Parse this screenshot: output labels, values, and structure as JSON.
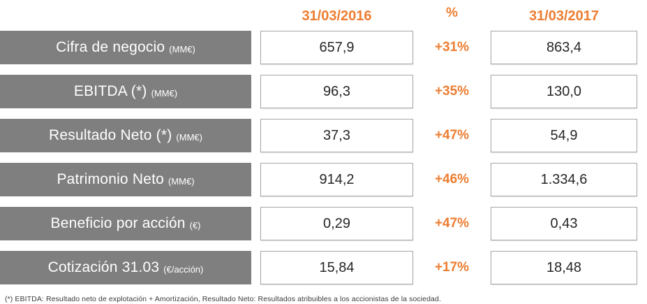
{
  "table": {
    "headers": {
      "col_2016": "31/03/2016",
      "col_pct": "%",
      "col_2017": "31/03/2017"
    },
    "rows": [
      {
        "label": "Cifra de negocio",
        "unit": "(MM€)",
        "v2016": "657,9",
        "pct": "+31%",
        "v2017": "863,4"
      },
      {
        "label": "EBITDA (*)",
        "unit": "(MM€)",
        "v2016": "96,3",
        "pct": "+35%",
        "v2017": "130,0"
      },
      {
        "label": "Resultado Neto (*)",
        "unit": "(MM€)",
        "v2016": "37,3",
        "pct": "+47%",
        "v2017": "54,9"
      },
      {
        "label": "Patrimonio Neto",
        "unit": "(MM€)",
        "v2016": "914,2",
        "pct": "+46%",
        "v2017": "1.334,6"
      },
      {
        "label": "Beneficio por acción",
        "unit": "(€)",
        "v2016": "0,29",
        "pct": "+47%",
        "v2017": "0,43"
      },
      {
        "label": "Cotización 31.03",
        "unit": "(€/acción)",
        "v2016": "15,84",
        "pct": "+17%",
        "v2017": "18,48"
      }
    ],
    "footnote": "(*) EBITDA: Resultado neto de explotación + Amortización, Resultado Neto: Resultados atribuibles a los accionistas de la sociedad."
  },
  "colors": {
    "accent_orange": "#ED7D31",
    "bar_gray": "#7F7F7F",
    "box_border": "#A6A6A6"
  },
  "chart_data": {
    "type": "table",
    "title": "",
    "categories": [
      "Cifra de negocio (MM€)",
      "EBITDA (MM€)",
      "Resultado Neto (MM€)",
      "Patrimonio Neto (MM€)",
      "Beneficio por acción (€)",
      "Cotización 31.03 (€/acción)"
    ],
    "series": [
      {
        "name": "31/03/2016",
        "values": [
          657.9,
          96.3,
          37.3,
          914.2,
          0.29,
          15.84
        ]
      },
      {
        "name": "31/03/2017",
        "values": [
          863.4,
          130.0,
          54.9,
          1334.6,
          0.43,
          18.48
        ]
      }
    ],
    "change_percent": [
      31,
      35,
      47,
      46,
      47,
      17
    ],
    "footnote": "(*) EBITDA: Resultado neto de explotación + Amortización, Resultado Neto: Resultados atribuibles a los accionistas de la sociedad."
  }
}
